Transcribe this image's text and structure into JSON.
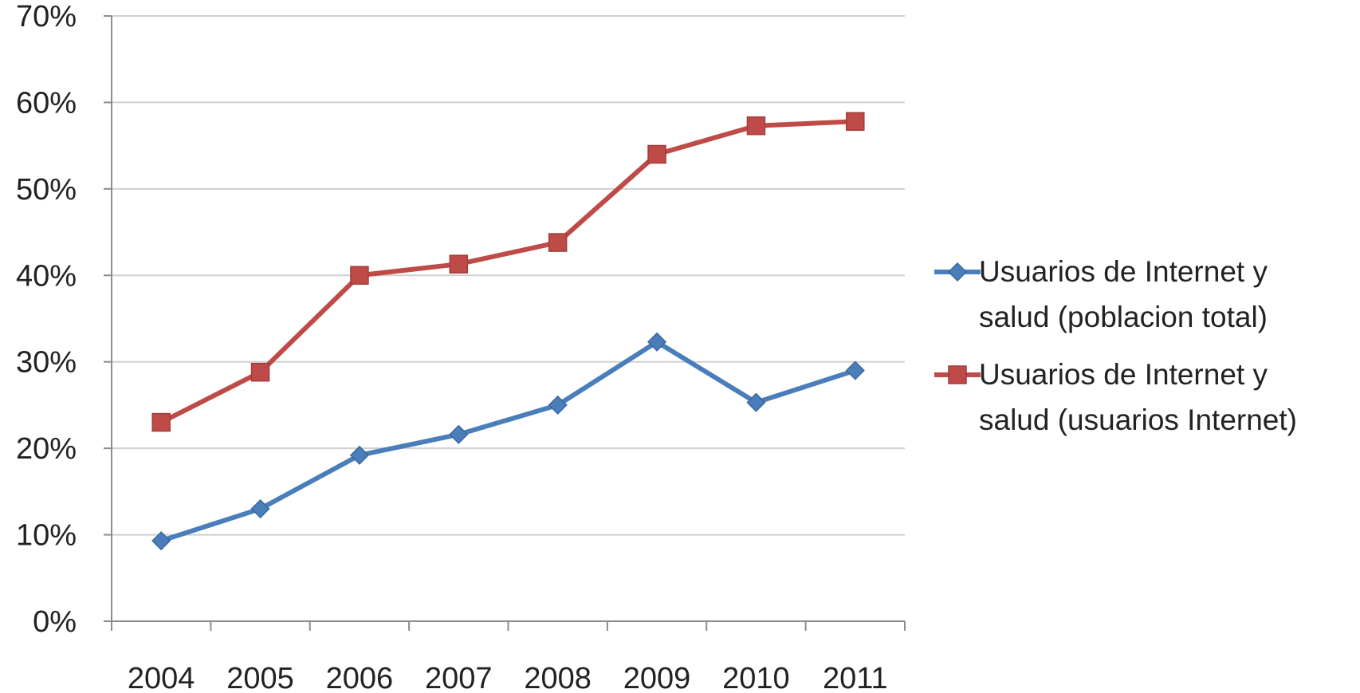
{
  "chart_data": {
    "type": "line",
    "categories": [
      "2004",
      "2005",
      "2006",
      "2007",
      "2008",
      "2009",
      "2010",
      "2011"
    ],
    "y_ticks": [
      "0%",
      "10%",
      "20%",
      "30%",
      "40%",
      "50%",
      "60%",
      "70%"
    ],
    "ylim": [
      0,
      70
    ],
    "y_unit": "%",
    "grid": true,
    "legend_position": "right",
    "series": [
      {
        "name_lines": [
          "Usuarios de Internet y",
          "salud (poblacion total)"
        ],
        "color": "#4a7ebb",
        "marker": "diamond",
        "values": [
          9.3,
          13,
          19.2,
          21.6,
          25,
          32.3,
          25.3,
          29
        ]
      },
      {
        "name_lines": [
          "Usuarios de Internet y",
          "salud (usuarios Internet)"
        ],
        "color": "#be4b48",
        "marker": "square",
        "values": [
          23,
          28.8,
          40,
          41.3,
          43.8,
          54,
          57.3,
          57.8
        ]
      }
    ]
  }
}
